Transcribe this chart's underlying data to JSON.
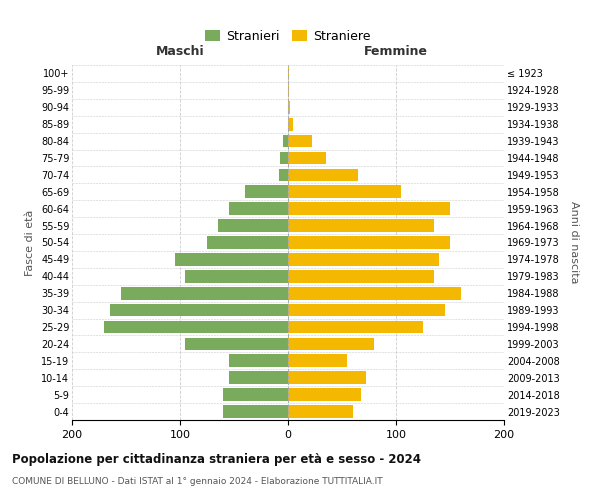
{
  "age_groups_bottom_to_top": [
    "0-4",
    "5-9",
    "10-14",
    "15-19",
    "20-24",
    "25-29",
    "30-34",
    "35-39",
    "40-44",
    "45-49",
    "50-54",
    "55-59",
    "60-64",
    "65-69",
    "70-74",
    "75-79",
    "80-84",
    "85-89",
    "90-94",
    "95-99",
    "100+"
  ],
  "birth_years_bottom_to_top": [
    "2019-2023",
    "2014-2018",
    "2009-2013",
    "2004-2008",
    "1999-2003",
    "1994-1998",
    "1989-1993",
    "1984-1988",
    "1979-1983",
    "1974-1978",
    "1969-1973",
    "1964-1968",
    "1959-1963",
    "1954-1958",
    "1949-1953",
    "1944-1948",
    "1939-1943",
    "1934-1938",
    "1929-1933",
    "1924-1928",
    "≤ 1923"
  ],
  "males_bottom_to_top": [
    60,
    60,
    55,
    55,
    95,
    170,
    165,
    155,
    95,
    105,
    75,
    65,
    55,
    40,
    8,
    7,
    5,
    0,
    0,
    0,
    0
  ],
  "females_bottom_to_top": [
    60,
    68,
    72,
    55,
    80,
    125,
    145,
    160,
    135,
    140,
    150,
    135,
    150,
    105,
    65,
    35,
    22,
    5,
    2,
    1,
    1
  ],
  "male_color": "#7aaa5c",
  "female_color": "#f5b800",
  "grid_color": "#cccccc",
  "title": "Popolazione per cittadinanza straniera per età e sesso - 2024",
  "subtitle": "COMUNE DI BELLUNO - Dati ISTAT al 1° gennaio 2024 - Elaborazione TUTTITALIA.IT",
  "xlabel_left": "Maschi",
  "xlabel_right": "Femmine",
  "ylabel_left": "Fasce di età",
  "ylabel_right": "Anni di nascita",
  "legend_male": "Stranieri",
  "legend_female": "Straniere",
  "xlim": 200
}
